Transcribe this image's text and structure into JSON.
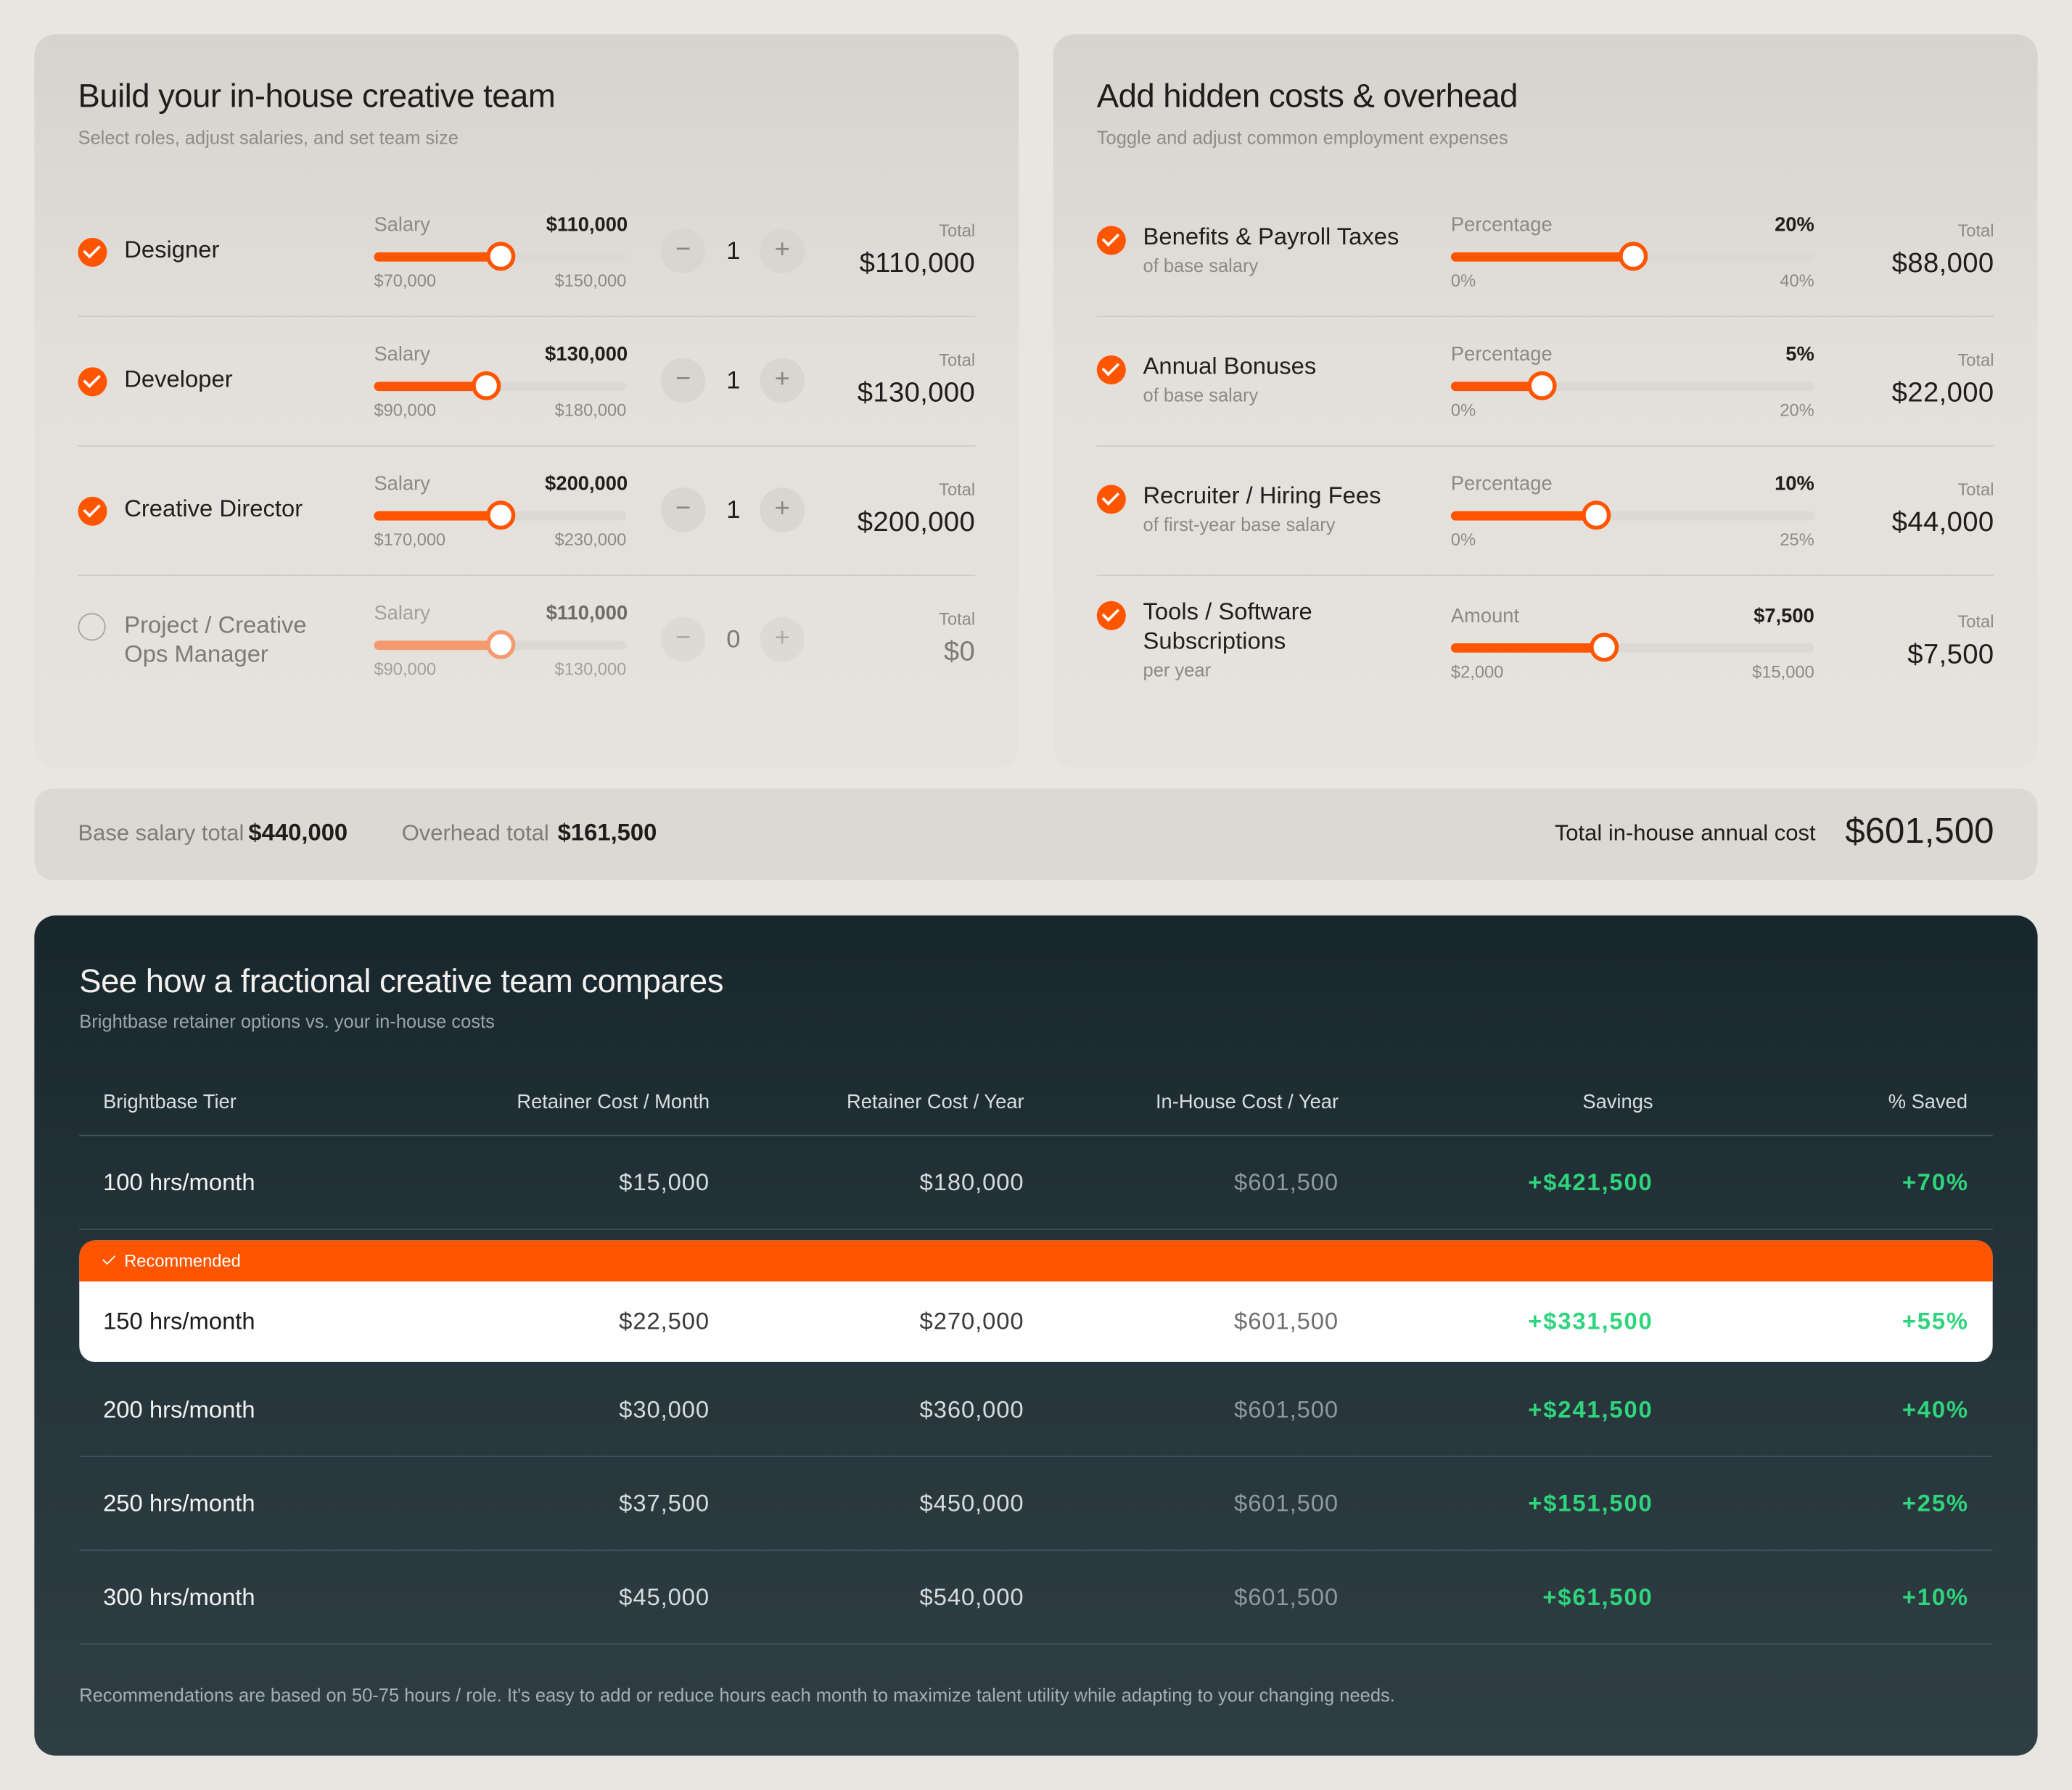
{
  "team": {
    "title": "Build your in-house creative team",
    "subtitle": "Select roles, adjust salaries, and set team size",
    "salary_label": "Salary",
    "total_label": "Total",
    "minus": "−",
    "plus": "+",
    "roles": [
      {
        "name": "Designer",
        "checked": true,
        "salary": "$110,000",
        "min": "$70,000",
        "max": "$150,000",
        "fraction": 0.5,
        "qty": "1",
        "total": "$110,000"
      },
      {
        "name": "Developer",
        "checked": true,
        "salary": "$130,000",
        "min": "$90,000",
        "max": "$180,000",
        "fraction": 0.444,
        "qty": "1",
        "total": "$130,000"
      },
      {
        "name": "Creative Director",
        "checked": true,
        "salary": "$200,000",
        "min": "$170,000",
        "max": "$230,000",
        "fraction": 0.5,
        "qty": "1",
        "total": "$200,000"
      },
      {
        "name_line1": "Project / Creative",
        "name_line2": "Ops Manager",
        "checked": false,
        "salary": "$110,000",
        "min": "$90,000",
        "max": "$130,000",
        "fraction": 0.5,
        "qty": "0",
        "total": "$0"
      }
    ]
  },
  "hidden": {
    "title": "Add hidden costs & overhead",
    "subtitle": "Toggle and adjust common employment expenses",
    "total_label": "Total",
    "items": [
      {
        "name": "Benefits & Payroll Taxes",
        "note": "of base salary",
        "label": "Percentage",
        "value": "20%",
        "min": "0%",
        "max": "40%",
        "fraction": 0.5,
        "total": "$88,000"
      },
      {
        "name": "Annual Bonuses",
        "note": "of base salary",
        "label": "Percentage",
        "value": "5%",
        "min": "0%",
        "max": "20%",
        "fraction": 0.25,
        "total": "$22,000"
      },
      {
        "name": "Recruiter / Hiring Fees",
        "note": "of first-year base salary",
        "label": "Percentage",
        "value": "10%",
        "min": "0%",
        "max": "25%",
        "fraction": 0.4,
        "total": "$44,000"
      },
      {
        "name_line1": "Tools / Software",
        "name_line2": "Subscriptions",
        "note": "per year",
        "label": "Amount",
        "value": "$7,500",
        "min": "$2,000",
        "max": "$15,000",
        "fraction": 0.423,
        "total": "$7,500"
      }
    ]
  },
  "summary": {
    "base_label": "Base salary total",
    "base_value": "$440,000",
    "overhead_label": "Overhead total",
    "overhead_value": "$161,500",
    "grand_label": "Total in-house annual cost",
    "grand_value": "$601,500"
  },
  "compare": {
    "title": "See how a fractional creative team compares",
    "subtitle": "Brightbase retainer options vs. your in-house costs",
    "headers": [
      "Brightbase Tier",
      "Retainer Cost / Month",
      "Retainer Cost / Year",
      "In-House Cost / Year",
      "Savings",
      "% Saved"
    ],
    "recommended_label": "Recommended",
    "rows": [
      {
        "tier": "100 hrs/month",
        "month": "$15,000",
        "year": "$180,000",
        "inhouse": "$601,500",
        "savings": "+$421,500",
        "pct": "+70%"
      },
      {
        "tier": "150 hrs/month",
        "month": "$22,500",
        "year": "$270,000",
        "inhouse": "$601,500",
        "savings": "+$331,500",
        "pct": "+55%"
      },
      {
        "tier": "200 hrs/month",
        "month": "$30,000",
        "year": "$360,000",
        "inhouse": "$601,500",
        "savings": "+$241,500",
        "pct": "+40%"
      },
      {
        "tier": "250 hrs/month",
        "month": "$37,500",
        "year": "$450,000",
        "inhouse": "$601,500",
        "savings": "+$151,500",
        "pct": "+25%"
      },
      {
        "tier": "300 hrs/month",
        "month": "$45,000",
        "year": "$540,000",
        "inhouse": "$601,500",
        "savings": "+$61,500",
        "pct": "+10%"
      }
    ],
    "footnote": "Recommendations are based on 50-75 hours / role. It's easy to add or reduce hours each month to maximize talent utility while adapting to your changing needs."
  },
  "colors": {
    "accent": "#ff5500",
    "savings": "#2fd47c",
    "dark_panel": "#1f2d33"
  }
}
